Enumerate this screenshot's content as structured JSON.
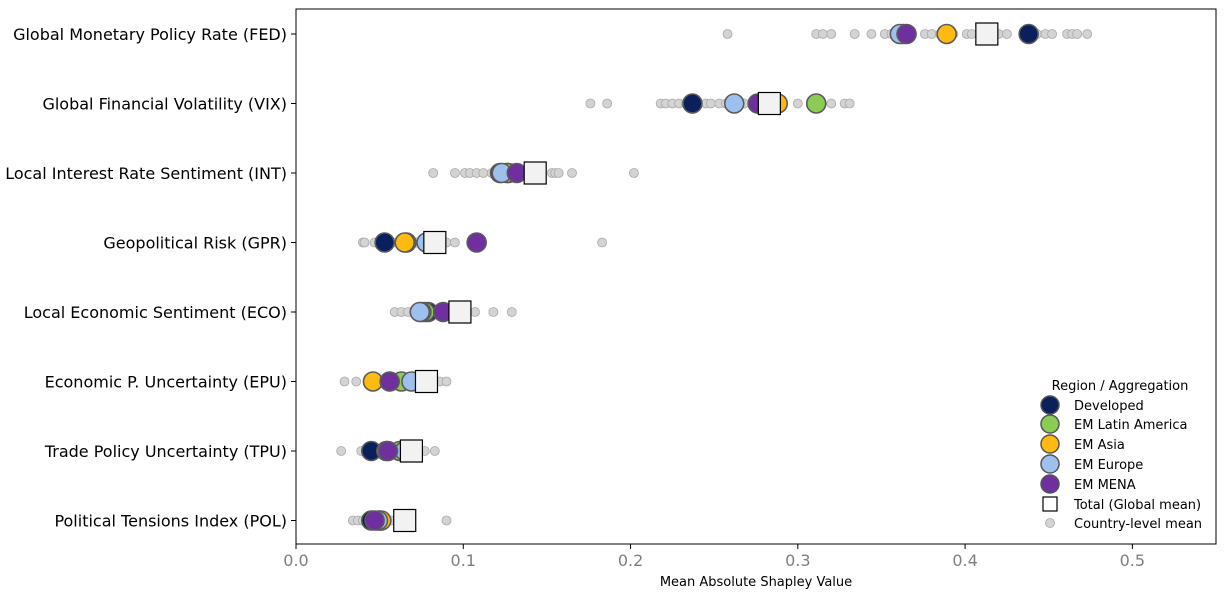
{
  "chart_data": {
    "type": "scatter",
    "title": "",
    "xlabel": "Mean Absolute Shapley Value",
    "ylabel": "",
    "xlim": [
      0.0,
      0.55
    ],
    "xticks": [
      "0.0",
      "0.1",
      "0.2",
      "0.3",
      "0.4",
      "0.5"
    ],
    "xtick_values": [
      0.0,
      0.1,
      0.2,
      0.3,
      0.4,
      0.5
    ],
    "categories": [
      "Global Monetary Policy Rate (FED)",
      "Global Financial Volatility (VIX)",
      "Local Interest Rate Sentiment (INT)",
      "Geopolitical Risk (GPR)",
      "Local Economic Sentiment (ECO)",
      "Economic P. Uncertainty (EPU)",
      "Trade Policy Uncertainty (TPU)",
      "Political Tensions Index (POL)"
    ],
    "country_points": [
      [
        0.258,
        0.311,
        0.315,
        0.32,
        0.334,
        0.344,
        0.352,
        0.356,
        0.368,
        0.376,
        0.38,
        0.385,
        0.393,
        0.401,
        0.404,
        0.412,
        0.42,
        0.425,
        0.443,
        0.448,
        0.452,
        0.461,
        0.464,
        0.467,
        0.473
      ],
      [
        0.176,
        0.186,
        0.218,
        0.221,
        0.225,
        0.229,
        0.233,
        0.24,
        0.245,
        0.248,
        0.253,
        0.257,
        0.268,
        0.275,
        0.286,
        0.3,
        0.308,
        0.32,
        0.328,
        0.331
      ],
      [
        0.082,
        0.095,
        0.101,
        0.104,
        0.108,
        0.112,
        0.117,
        0.12,
        0.125,
        0.13,
        0.14,
        0.145,
        0.153,
        0.155,
        0.157,
        0.165,
        0.202
      ],
      [
        0.04,
        0.041,
        0.047,
        0.05,
        0.058,
        0.066,
        0.072,
        0.077,
        0.085,
        0.09,
        0.095,
        0.183
      ],
      [
        0.059,
        0.063,
        0.067,
        0.072,
        0.079,
        0.086,
        0.094,
        0.101,
        0.107,
        0.118,
        0.129
      ],
      [
        0.029,
        0.036,
        0.047,
        0.054,
        0.058,
        0.066,
        0.072,
        0.079,
        0.086,
        0.09
      ],
      [
        0.027,
        0.039,
        0.043,
        0.05,
        0.059,
        0.066,
        0.071,
        0.077,
        0.083
      ],
      [
        0.034,
        0.037,
        0.04,
        0.044,
        0.048,
        0.053,
        0.057,
        0.062,
        0.09
      ]
    ],
    "series": [
      {
        "name": "Developed",
        "color": "#0b1f5c",
        "values": [
          0.438,
          0.237,
          0.122,
          0.053,
          0.079,
          0.073,
          0.045,
          0.045
        ]
      },
      {
        "name": "EM Latin America",
        "color": "#8ccc55",
        "values": [
          0.363,
          0.311,
          0.127,
          0.066,
          0.077,
          0.063,
          0.062,
          0.05
        ]
      },
      {
        "name": "EM Asia",
        "color": "#fdbb11",
        "values": [
          0.389,
          0.288,
          0.126,
          0.065,
          0.075,
          0.046,
          0.054,
          0.051
        ]
      },
      {
        "name": "EM Europe",
        "color": "#9ec0ee",
        "values": [
          0.361,
          0.262,
          0.123,
          0.078,
          0.074,
          0.069,
          0.065,
          0.049
        ]
      },
      {
        "name": "EM MENA",
        "color": "#6f2f9f",
        "values": [
          0.365,
          0.276,
          0.132,
          0.108,
          0.088,
          0.056,
          0.055,
          0.047
        ]
      }
    ],
    "total": {
      "name": "Total (Global mean)",
      "values": [
        0.413,
        0.283,
        0.143,
        0.083,
        0.098,
        0.078,
        0.069,
        0.065
      ]
    },
    "country_label": "Country-level mean",
    "legend_title": "Region / Aggregation",
    "legend_position": "lower-right"
  }
}
